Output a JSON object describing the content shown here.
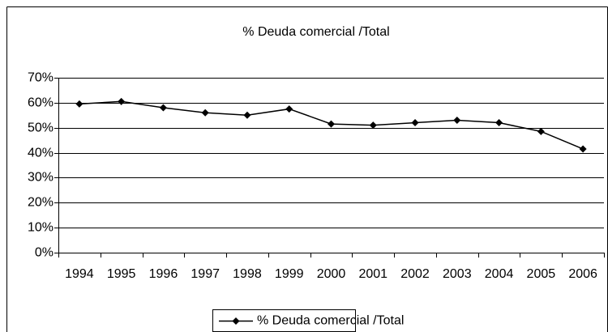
{
  "chart_data": {
    "type": "line",
    "title": "% Deuda comercial /Total",
    "categories": [
      "1994",
      "1995",
      "1996",
      "1997",
      "1998",
      "1999",
      "2000",
      "2001",
      "2002",
      "2003",
      "2004",
      "2005",
      "2006"
    ],
    "series": [
      {
        "name": "% Deuda comercial /Total",
        "color": "#000000",
        "values": [
          59.5,
          60.5,
          58,
          56,
          55,
          57.5,
          51.5,
          51,
          52,
          53,
          52,
          48.5,
          41.5
        ]
      }
    ],
    "ylim": [
      0,
      70
    ],
    "yticks": [
      {
        "value": 0,
        "label": "0%"
      },
      {
        "value": 10,
        "label": "10%"
      },
      {
        "value": 20,
        "label": "20%"
      },
      {
        "value": 30,
        "label": "30%"
      },
      {
        "value": 40,
        "label": "40%"
      },
      {
        "value": 50,
        "label": "50%"
      },
      {
        "value": 60,
        "label": "60%"
      },
      {
        "value": 70,
        "label": "70%"
      }
    ],
    "grid": true,
    "legend": "bottom"
  }
}
